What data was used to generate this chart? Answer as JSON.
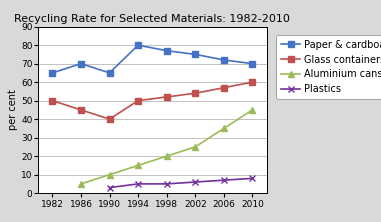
{
  "title": "Recycling Rate for Selected Materials: 1982-2010",
  "ylabel": "per cent",
  "years": [
    1982,
    1986,
    1990,
    1994,
    1998,
    2002,
    2006,
    2010
  ],
  "series": [
    {
      "label": "Paper & cardboard",
      "values": [
        65,
        70,
        65,
        80,
        77,
        75,
        72,
        70
      ],
      "color": "#4472C4",
      "marker": "s",
      "markersize": 4
    },
    {
      "label": "Glass containers",
      "values": [
        50,
        45,
        40,
        50,
        52,
        54,
        57,
        60
      ],
      "color": "#C0504D",
      "marker": "s",
      "markersize": 4
    },
    {
      "label": "Aluminium cans",
      "values": [
        null,
        5,
        10,
        15,
        20,
        25,
        35,
        45
      ],
      "color": "#9BBB59",
      "marker": "^",
      "markersize": 4
    },
    {
      "label": "Plastics",
      "values": [
        null,
        null,
        3,
        5,
        5,
        6,
        7,
        8
      ],
      "color": "#7030A0",
      "marker": "x",
      "markersize": 4
    }
  ],
  "xlim": [
    1980,
    2012
  ],
  "ylim": [
    0,
    90
  ],
  "yticks": [
    0,
    10,
    20,
    30,
    40,
    50,
    60,
    70,
    80,
    90
  ],
  "xticks": [
    1982,
    1986,
    1990,
    1994,
    1998,
    2002,
    2006,
    2010
  ],
  "background_color": "#D9D9D9",
  "plot_bg_color": "#FFFFFF",
  "title_fontsize": 8,
  "legend_fontsize": 7,
  "tick_fontsize": 6.5,
  "label_fontsize": 7
}
